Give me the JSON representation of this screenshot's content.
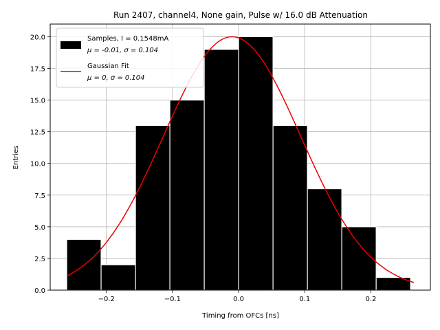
{
  "chart_data": {
    "type": "bar",
    "title": "Run 2407, channel4, None gain, Pulse w/ 16.0 dB Attenuation",
    "xlabel": "Timing from OFCs [ns]",
    "ylabel": "Entries",
    "xlim": [
      -0.285,
      0.29
    ],
    "ylim": [
      0,
      21
    ],
    "xticks": [
      -0.2,
      -0.1,
      0.0,
      0.1,
      0.2
    ],
    "xtick_labels": [
      "−0.2",
      "−0.1",
      "0.0",
      "0.1",
      "0.2"
    ],
    "yticks": [
      0.0,
      2.5,
      5.0,
      7.5,
      10.0,
      12.5,
      15.0,
      17.5,
      20.0
    ],
    "ytick_labels": [
      "0.0",
      "2.5",
      "5.0",
      "7.5",
      "10.0",
      "12.5",
      "15.0",
      "17.5",
      "20.0"
    ],
    "grid": true,
    "legend_position": "top-left",
    "histogram": {
      "name": "Samples, I = 0.1548mA",
      "stats_line": "μ = -0.01, σ = 0.104",
      "color": "#000000",
      "edge_color": "#ffffff",
      "bin_edges": [
        -0.26,
        -0.208,
        -0.156,
        -0.104,
        -0.052,
        0.0,
        0.052,
        0.104,
        0.156,
        0.208,
        0.26
      ],
      "counts": [
        4,
        2,
        13,
        15,
        19,
        20,
        13,
        8,
        5,
        1
      ]
    },
    "fit": {
      "name": "Gaussian Fit",
      "stats_line": "μ = 0, σ = 0.104",
      "color": "#ee0000",
      "amplitude": 20.0,
      "mu": -0.01,
      "sigma": 0.104,
      "x_range": [
        -0.26,
        0.265
      ]
    }
  }
}
